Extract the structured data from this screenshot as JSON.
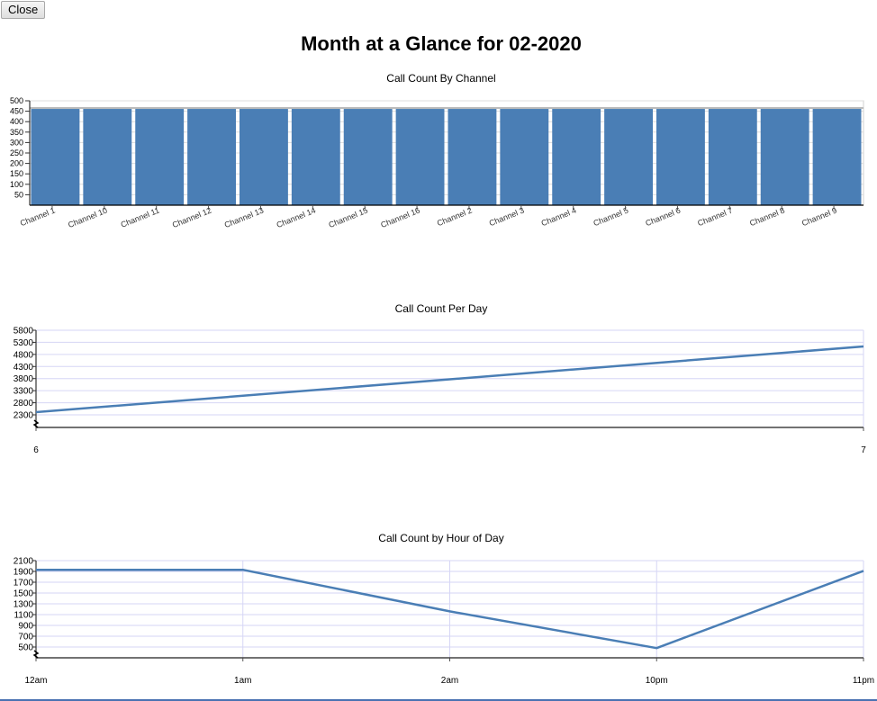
{
  "toolbar": {
    "close_label": "Close"
  },
  "page": {
    "title": "Month at a Glance for 02-2020"
  },
  "colors": {
    "series": "#4a7eb5",
    "grid_line": "#d6d6f5",
    "bar_grid": "#dddddd",
    "axis": "#333333"
  },
  "charts": {
    "by_channel": {
      "title": "Call Count By Channel"
    },
    "per_day": {
      "title": "Call Count Per Day"
    },
    "by_hour": {
      "title": "Call Count by Hour of Day"
    }
  },
  "chart_data": [
    {
      "type": "bar",
      "title": "Call Count By Channel",
      "xlabel": "",
      "ylabel": "",
      "categories": [
        "Channel 1",
        "Channel 10",
        "Channel 11",
        "Channel 12",
        "Channel 13",
        "Channel 14",
        "Channel 15",
        "Channel 16",
        "Channel 2",
        "Channel 3",
        "Channel 4",
        "Channel 5",
        "Channel 6",
        "Channel 7",
        "Channel 8",
        "Channel 9"
      ],
      "values": [
        461,
        461,
        461,
        461,
        461,
        461,
        461,
        461,
        461,
        461,
        461,
        461,
        461,
        461,
        461,
        461
      ],
      "ylim": [
        0,
        500
      ],
      "yticks": [
        50,
        100,
        150,
        200,
        250,
        300,
        350,
        400,
        450,
        500
      ],
      "grid": true,
      "legend": null
    },
    {
      "type": "line",
      "title": "Call Count Per Day",
      "xlabel": "",
      "ylabel": "",
      "x": [
        "6",
        "7"
      ],
      "values": [
        2410,
        5130
      ],
      "ylim": [
        2000,
        5800
      ],
      "yticks": [
        2300,
        2800,
        3300,
        3800,
        4300,
        4800,
        5300,
        5800
      ],
      "axis_break": true,
      "grid": true,
      "legend": null
    },
    {
      "type": "line",
      "title": "Call Count by Hour of Day",
      "xlabel": "",
      "ylabel": "",
      "x": [
        "12am",
        "1am",
        "2am",
        "10pm",
        "11pm"
      ],
      "values": [
        1930,
        1930,
        1160,
        480,
        1910
      ],
      "ylim": [
        300,
        2100
      ],
      "yticks": [
        500,
        700,
        900,
        1100,
        1300,
        1500,
        1700,
        1900,
        2100
      ],
      "axis_break": true,
      "grid": true,
      "legend": null
    }
  ]
}
